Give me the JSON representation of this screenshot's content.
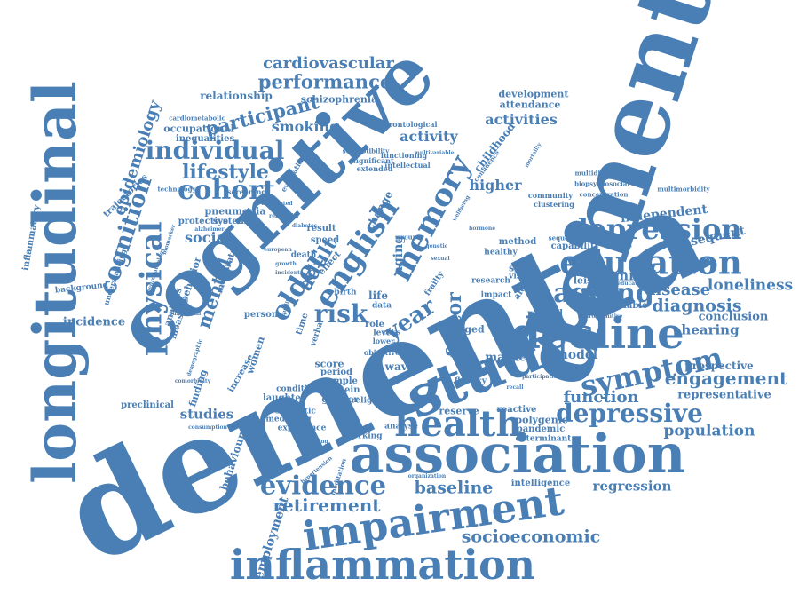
{
  "color": "#4a7fb5",
  "background": "#ffffff",
  "words": [
    "dementia",
    "cognitive",
    "dementia",
    "longitudinal",
    "association",
    "study",
    "impairment",
    "inflammation",
    "decline",
    "health",
    "education",
    "ageing",
    "symptom",
    "english",
    "memory",
    "physical",
    "depression",
    "evidence",
    "depressive",
    "cohort",
    "individual",
    "older",
    "risk",
    "year",
    "lifestyle",
    "socioeconomic",
    "engagement",
    "retirement",
    "baseline",
    "cognition",
    "performance",
    "cardiovascular",
    "participant",
    "epidemiology",
    "factor",
    "adult",
    "mental",
    "population",
    "function",
    "diagnosis",
    "loneliness",
    "disease",
    "regression",
    "smoking",
    "activity",
    "activities",
    "higher",
    "studies",
    "social",
    "behaviour",
    "employment",
    "incidence",
    "inflammatory",
    "hearing",
    "conclusion",
    "independent",
    "subsequent",
    "representative",
    "prospective",
    "marker",
    "model",
    "terminal",
    "change",
    "aging",
    "women",
    "pneumonia",
    "relationship",
    "schizophrenia",
    "development",
    "attendance",
    "childhood",
    "occupational",
    "inequalities",
    "trajectories",
    "protective",
    "systemic",
    "preclinical",
    "finding",
    "score",
    "period",
    "sample",
    "protein",
    "greater",
    "result",
    "role",
    "level",
    "life",
    "leisure",
    "capability",
    "related",
    "modifiable",
    "intelligence",
    "reserve",
    "polygenic",
    "pandemic",
    "reactive",
    "determinant",
    "working",
    "analyse",
    "experience",
    "mediating",
    "semantic",
    "laughter",
    "increase",
    "condition",
    "person",
    "analysis",
    "behavior",
    "measure",
    "moderate",
    "understanding",
    "background",
    "sleep",
    "alcohol",
    "method",
    "healthy",
    "vision",
    "grade",
    "research",
    "impact",
    "fluency",
    "wave",
    "aged",
    "time",
    "verbal",
    "frailty",
    "data",
    "religious",
    "speed",
    "death",
    "effect",
    "birth",
    "cardiometabolic",
    "gerontological",
    "functioning",
    "intellectual",
    "significant",
    "susceptibility",
    "extended",
    "evaluation",
    "screening",
    "technology",
    "community",
    "clustering",
    "multidisciplinary",
    "biopsychosocial",
    "concentration",
    "multimorbidity",
    "sequence",
    "educational",
    "neurocognitive",
    "associated",
    "european",
    "growth",
    "diabetes",
    "incident",
    "objective",
    "lower",
    "class",
    "religiosity",
    "alzheimer",
    "group",
    "multivariable",
    "organization",
    "hypertension",
    "meditation",
    "caregiving",
    "consumption",
    "demographic",
    "comorbidity",
    "functional",
    "neuropathology",
    "biomarker",
    "confidence",
    "wellbeing",
    "mortality",
    "genetic",
    "hormone",
    "sexual",
    "education",
    "participation",
    "recall",
    "quality"
  ]
}
